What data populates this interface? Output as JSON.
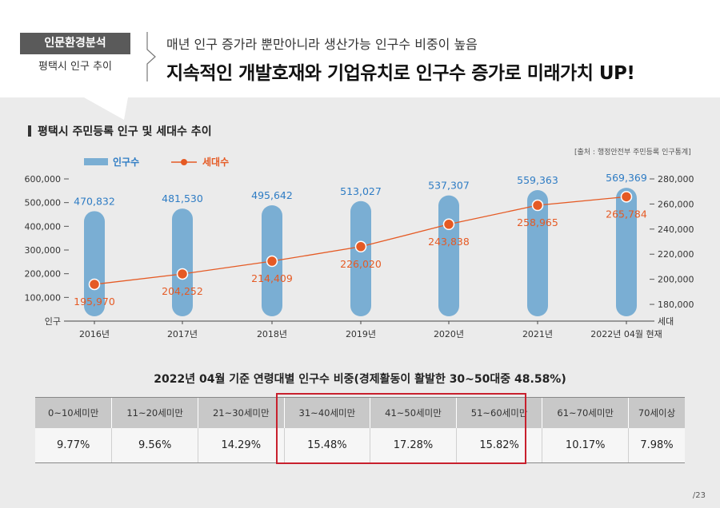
{
  "header": {
    "tag": "인문환경분석",
    "tag_sub": "평택시 인구 추이",
    "subtitle": "매년 인구 증가라 뿐만아니라 생산가능 인구수 비중이 높음",
    "headline": "지속적인 개발호재와 기업유치로 인구수 증가로 미래가치 UP!"
  },
  "section_title": "평택시 주민등록 인구 및 세대수 추이",
  "source": "[출처 : 행정안전부 주민등록 인구통계]",
  "colors": {
    "population": "#7aaed3",
    "household": "#e55a24",
    "highlight": "#c8202d"
  },
  "chart_data": {
    "type": "bar",
    "categories": [
      "2016년",
      "2017년",
      "2018년",
      "2019년",
      "2020년",
      "2021년",
      "2022년 04월 현재"
    ],
    "series": [
      {
        "name": "인구수",
        "axis": "left",
        "values": [
          470832,
          481530,
          495642,
          513027,
          537307,
          559363,
          569369
        ],
        "labels": [
          "470,832",
          "481,530",
          "495,642",
          "513,027",
          "537,307",
          "559,363",
          "569,369"
        ]
      },
      {
        "name": "세대수",
        "axis": "right",
        "type": "line",
        "values": [
          195970,
          204252,
          214409,
          226020,
          243838,
          258965,
          265784
        ],
        "labels": [
          "195,970",
          "204,252",
          "214,409",
          "226,020",
          "243,838",
          "258,965",
          "265,784"
        ]
      }
    ],
    "y_left": {
      "label": "인구",
      "ticks": [
        "600,000",
        "500,000",
        "400,000",
        "300,000",
        "200,000",
        "100,000"
      ],
      "range": [
        0,
        600000
      ]
    },
    "y_right": {
      "label": "세대",
      "ticks": [
        "280,000",
        "260,000",
        "240,000",
        "220,000",
        "200,000",
        "180,000"
      ],
      "range": [
        166667,
        280000
      ]
    },
    "legend_position": "top-left"
  },
  "table": {
    "title": "2022년 04월 기준 연령대별 인구수 비중(경제활동이 활발한 30~50대중 48.58%)",
    "headers": [
      "0~10세미만",
      "11~20세미만",
      "21~30세미만",
      "31~40세미만",
      "41~50세미만",
      "51~60세미만",
      "61~70세미만",
      "70세이상"
    ],
    "values": [
      "9.77%",
      "9.56%",
      "14.29%",
      "15.48%",
      "17.28%",
      "15.82%",
      "10.17%",
      "7.98%"
    ],
    "highlighted_columns": [
      3,
      4,
      5
    ]
  },
  "page_number": "23"
}
